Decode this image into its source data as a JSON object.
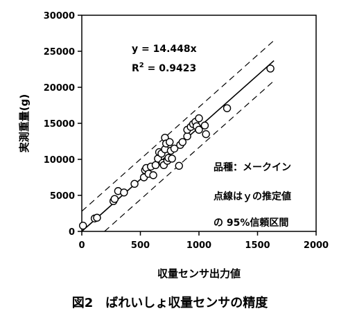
{
  "chart_data": {
    "type": "scatter",
    "xlabel": "収量センサ出力値",
    "ylabel": "実測重量(g)",
    "xlim": [
      0,
      2000
    ],
    "ylim": [
      0,
      30000
    ],
    "x_ticks": [
      "0",
      "500",
      "1000",
      "1500",
      "2000"
    ],
    "y_ticks": [
      "0",
      "5000",
      "10000",
      "15000",
      "20000",
      "25000",
      "30000"
    ],
    "grid": false,
    "points": [
      [
        10,
        800
      ],
      [
        110,
        1800
      ],
      [
        130,
        1900
      ],
      [
        270,
        4200
      ],
      [
        280,
        4500
      ],
      [
        310,
        5600
      ],
      [
        360,
        5400
      ],
      [
        450,
        6600
      ],
      [
        530,
        7500
      ],
      [
        540,
        8500
      ],
      [
        550,
        8800
      ],
      [
        570,
        8000
      ],
      [
        590,
        9000
      ],
      [
        610,
        7800
      ],
      [
        630,
        9200
      ],
      [
        650,
        10100
      ],
      [
        660,
        11000
      ],
      [
        680,
        10800
      ],
      [
        690,
        9500
      ],
      [
        700,
        9200
      ],
      [
        710,
        13000
      ],
      [
        710,
        11400
      ],
      [
        720,
        12200
      ],
      [
        730,
        9800
      ],
      [
        740,
        10200
      ],
      [
        750,
        12400
      ],
      [
        760,
        11200
      ],
      [
        770,
        10100
      ],
      [
        790,
        11500
      ],
      [
        830,
        9100
      ],
      [
        840,
        12000
      ],
      [
        860,
        12400
      ],
      [
        900,
        13200
      ],
      [
        900,
        14100
      ],
      [
        930,
        14500
      ],
      [
        950,
        14900
      ],
      [
        970,
        15200
      ],
      [
        980,
        14600
      ],
      [
        1000,
        14100
      ],
      [
        1000,
        15700
      ],
      [
        1050,
        14700
      ],
      [
        1060,
        13500
      ],
      [
        1240,
        17100
      ],
      [
        1610,
        22600
      ]
    ],
    "series": [
      {
        "equation": "y = 14.448x",
        "r2": "R² = 0.9423",
        "slope": 14.448
      }
    ],
    "confidence_offset": 2800,
    "annotations": [
      "y = 14.448x",
      "R",
      "2",
      " = 0.9423",
      "品種：メークイン",
      "点線はｙの推定値",
      "の 95%信頼区間"
    ]
  },
  "caption": "図2　ばれいしょ収量センサの精度"
}
